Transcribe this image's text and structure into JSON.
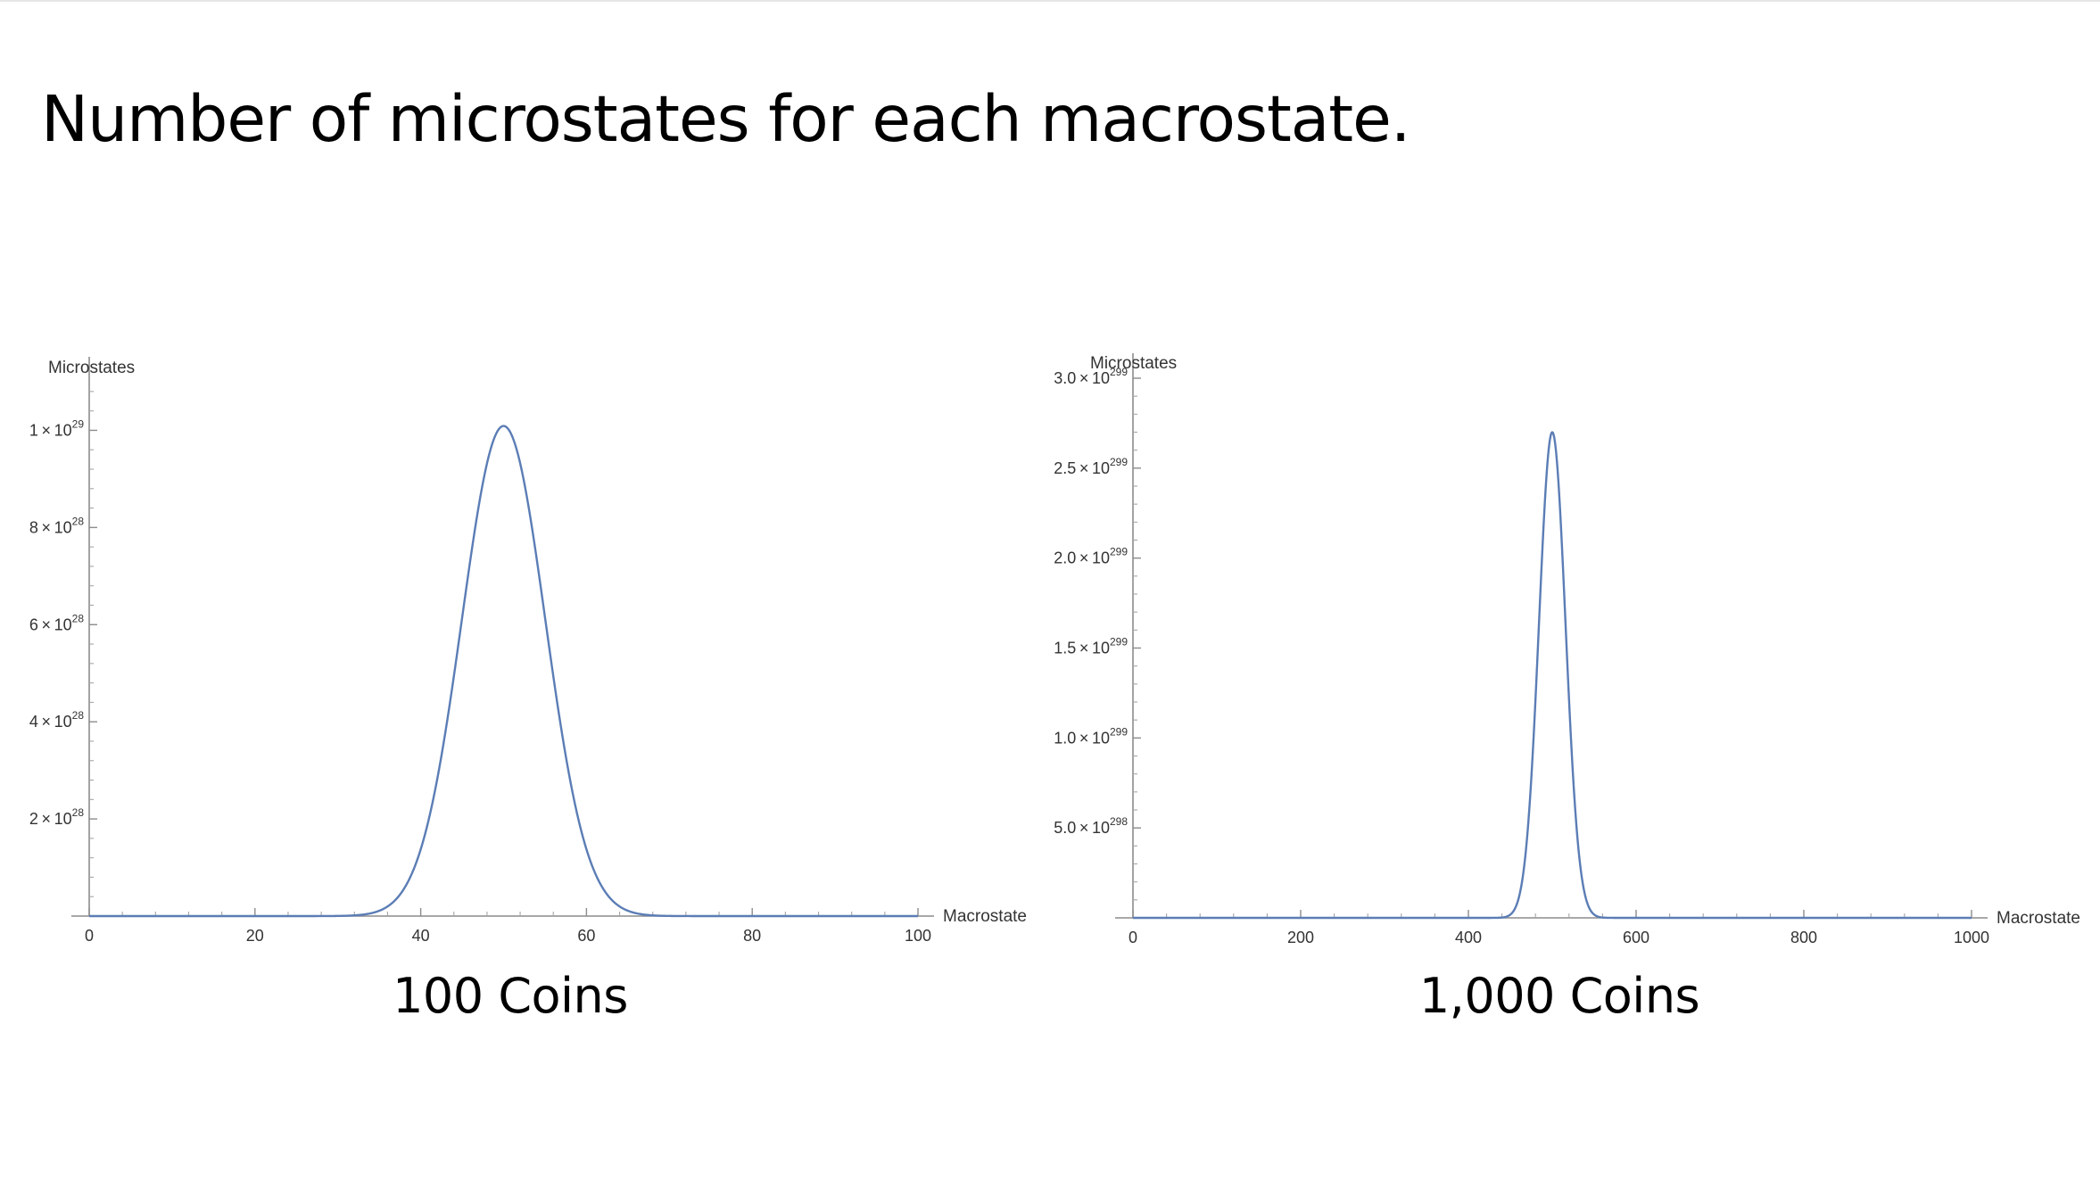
{
  "slide": {
    "title": "Number of microstates for each macrostate."
  },
  "chart_data": [
    {
      "type": "line",
      "caption": "100 Coins",
      "xlabel": "Macrostate",
      "ylabel": "Microstates",
      "xlim": [
        0,
        100
      ],
      "ylim": [
        0,
        1.1e+29
      ],
      "x_ticks": [
        0,
        20,
        40,
        60,
        80,
        100
      ],
      "y_ticks": [
        {
          "mantissa": "2",
          "exponent": "28",
          "value": 2e+28
        },
        {
          "mantissa": "4",
          "exponent": "28",
          "value": 4e+28
        },
        {
          "mantissa": "6",
          "exponent": "28",
          "value": 6e+28
        },
        {
          "mantissa": "8",
          "exponent": "28",
          "value": 8e+28
        },
        {
          "mantissa": "1",
          "exponent": "29",
          "value": 1e+29
        }
      ],
      "series": [
        {
          "color": "#5b7db5",
          "distribution": "binomial",
          "n": 100,
          "peak_x": 50,
          "peak_y": 1.009e+29
        }
      ]
    },
    {
      "type": "line",
      "caption": "1,000 Coins",
      "xlabel": "Macrostate",
      "ylabel": "Microstates",
      "xlim": [
        0,
        1000
      ],
      "ylim": [
        0,
        3e+299
      ],
      "x_ticks": [
        0,
        200,
        400,
        600,
        800,
        1000
      ],
      "y_ticks": [
        {
          "mantissa": "5.0",
          "exponent": "298",
          "value": 5e+298
        },
        {
          "mantissa": "1.0",
          "exponent": "299",
          "value": 1e+299
        },
        {
          "mantissa": "1.5",
          "exponent": "299",
          "value": 1.5e+299
        },
        {
          "mantissa": "2.0",
          "exponent": "299",
          "value": 2e+299
        },
        {
          "mantissa": "2.5",
          "exponent": "299",
          "value": 2.5e+299
        },
        {
          "mantissa": "3.0",
          "exponent": "299",
          "value": 3e+299
        }
      ],
      "series": [
        {
          "color": "#5b7db5",
          "distribution": "binomial",
          "n": 1000,
          "peak_x": 500,
          "peak_y": 2.7e+299
        }
      ]
    }
  ]
}
